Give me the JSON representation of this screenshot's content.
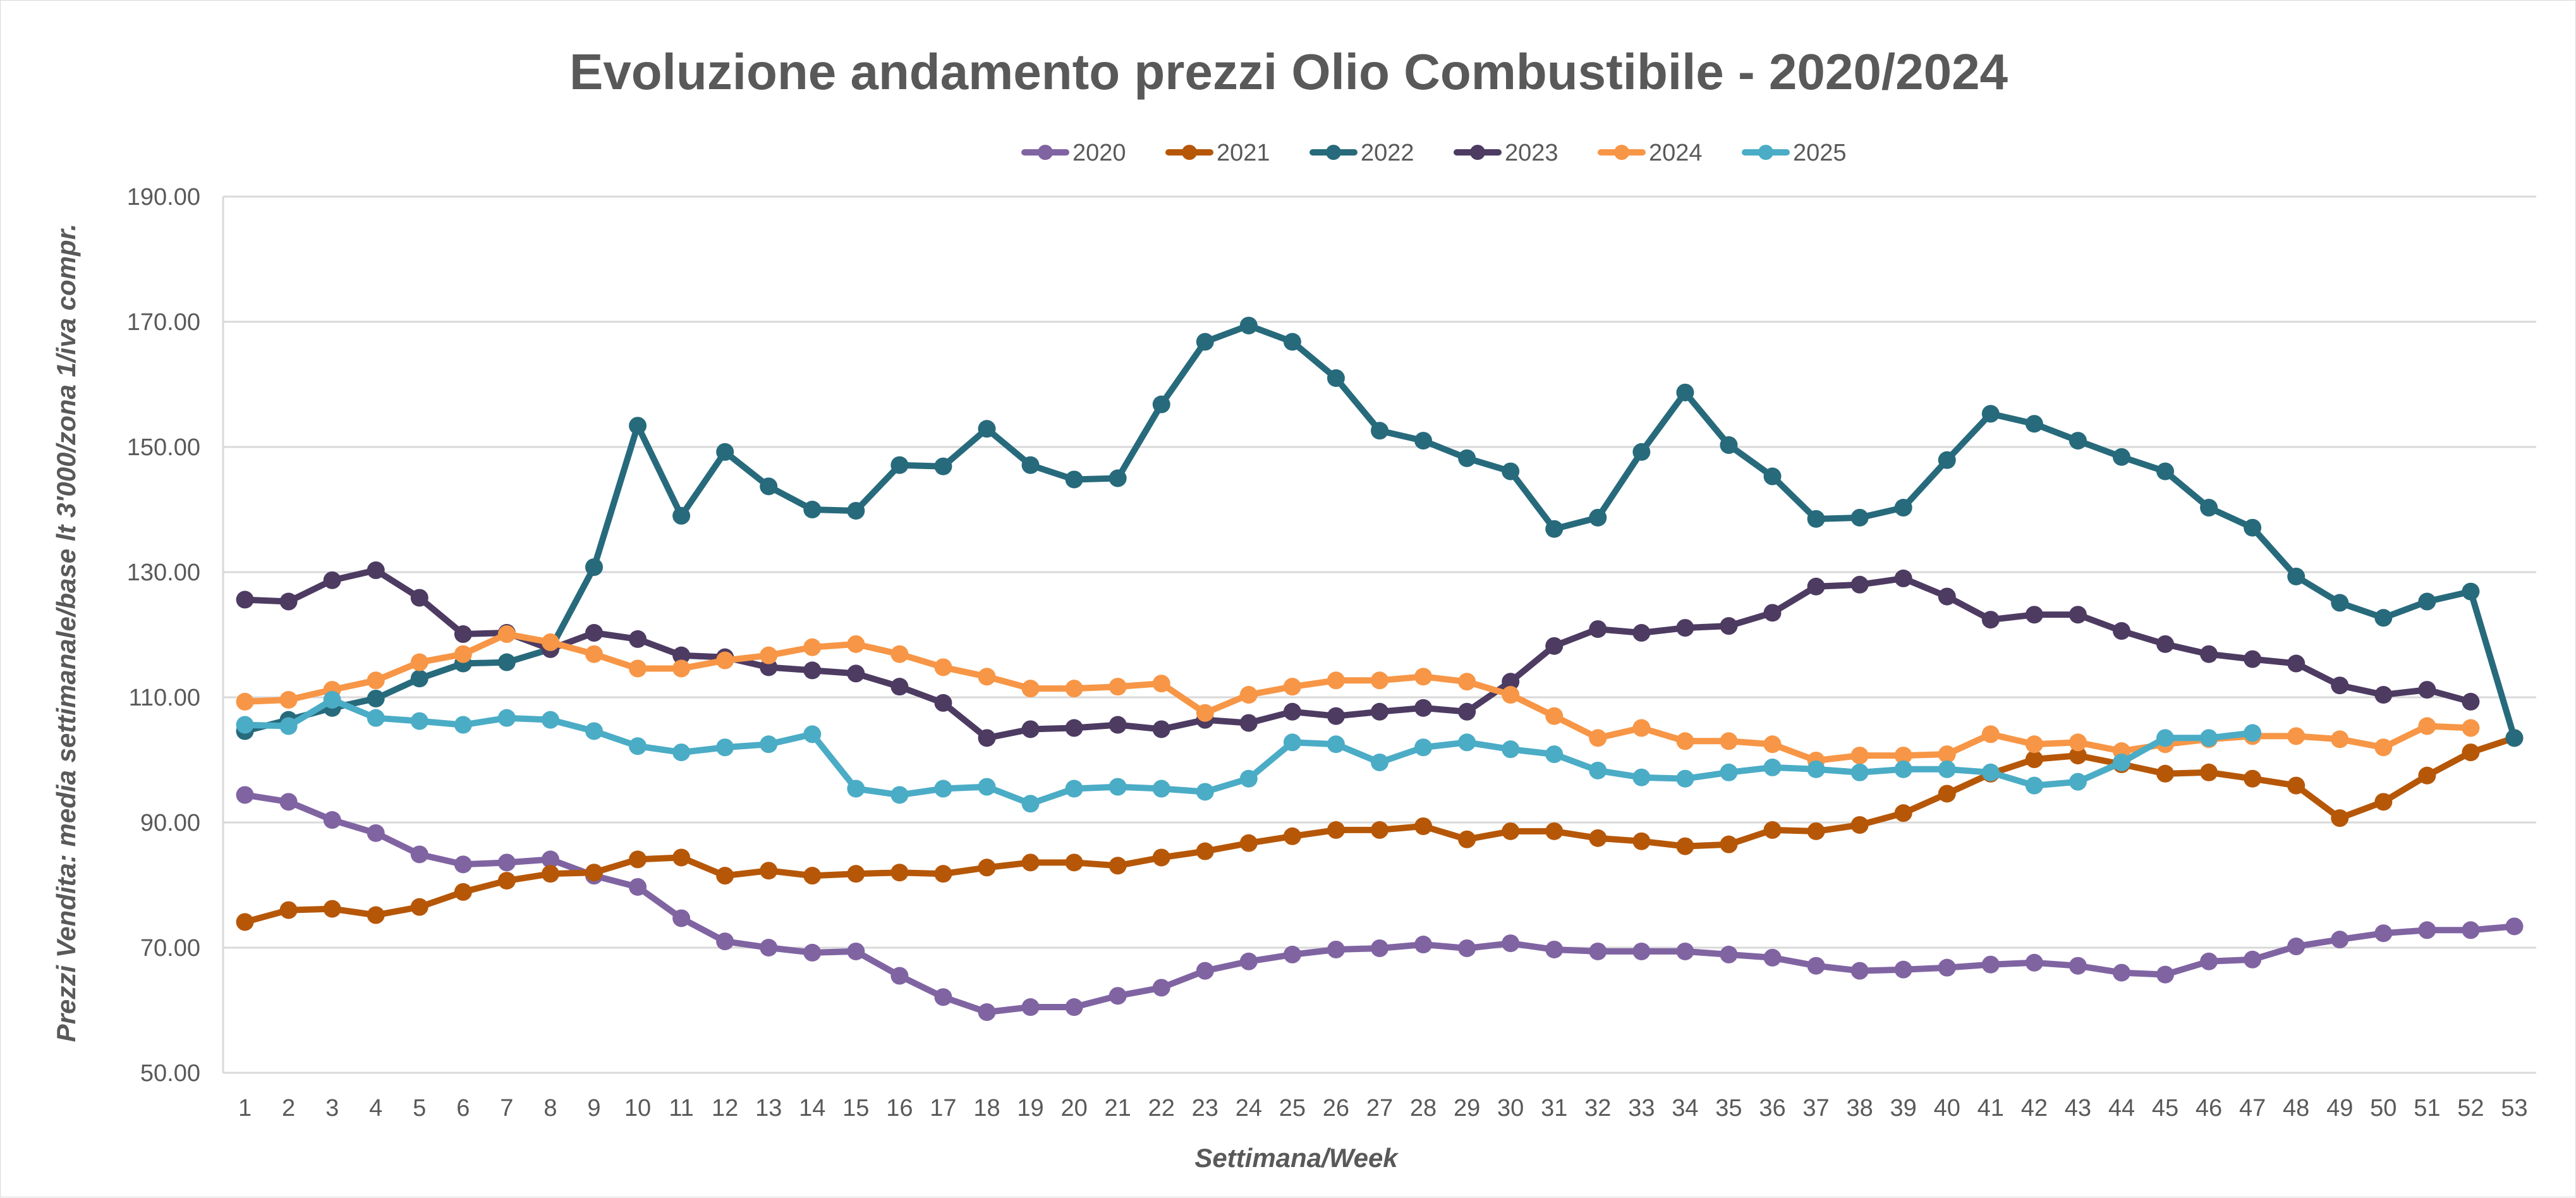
{
  "chart_data": {
    "type": "line",
    "title": "Evoluzione andamento prezzi Olio Combustibile - 2020/2024",
    "xlabel": "Settimana/Week",
    "ylabel": "Prezzi Vendita: media settimanale/base lt 3'000/zona 1/iva compr.",
    "ylim": [
      50,
      190
    ],
    "yticks": [
      "50.00",
      "70.00",
      "90.00",
      "110.00",
      "130.00",
      "150.00",
      "170.00",
      "190.00"
    ],
    "ytick_values": [
      50,
      70,
      90,
      110,
      130,
      150,
      170,
      190
    ],
    "x": [
      1,
      2,
      3,
      4,
      5,
      6,
      7,
      8,
      9,
      10,
      11,
      12,
      13,
      14,
      15,
      16,
      17,
      18,
      19,
      20,
      21,
      22,
      23,
      24,
      25,
      26,
      27,
      28,
      29,
      30,
      31,
      32,
      33,
      34,
      35,
      36,
      37,
      38,
      39,
      40,
      41,
      42,
      43,
      44,
      45,
      46,
      47,
      48,
      49,
      50,
      51,
      52,
      53
    ],
    "grid": "horizontal",
    "legend_position": "top",
    "series": [
      {
        "name": "2020",
        "color": "#8064a2",
        "values": [
          94.4,
          93.3,
          90.4,
          88.3,
          84.9,
          83.3,
          83.6,
          84.1,
          81.5,
          79.7,
          74.7,
          71.0,
          70.0,
          69.2,
          69.4,
          65.5,
          62.1,
          59.7,
          60.5,
          60.5,
          62.3,
          63.6,
          66.3,
          67.8,
          68.9,
          69.7,
          69.9,
          70.5,
          69.9,
          70.7,
          69.7,
          69.4,
          69.4,
          69.4,
          68.9,
          68.4,
          67.1,
          66.3,
          66.5,
          66.8,
          67.3,
          67.6,
          67.1,
          66.0,
          65.7,
          67.8,
          68.1,
          70.2,
          71.3,
          72.3,
          72.8,
          72.8,
          73.4
        ]
      },
      {
        "name": "2021",
        "color": "#b65708",
        "values": [
          74.1,
          76.0,
          76.2,
          75.2,
          76.5,
          78.9,
          80.7,
          81.8,
          82.0,
          84.1,
          84.4,
          81.5,
          82.3,
          81.5,
          81.8,
          82.0,
          81.8,
          82.8,
          83.6,
          83.6,
          83.1,
          84.4,
          85.4,
          86.7,
          87.8,
          88.8,
          88.8,
          89.4,
          87.3,
          88.6,
          88.6,
          87.5,
          87.0,
          86.2,
          86.5,
          88.8,
          88.6,
          89.6,
          91.5,
          94.6,
          97.8,
          100.1,
          100.7,
          99.3,
          97.8,
          98.0,
          97.0,
          95.9,
          90.7,
          93.3,
          97.5,
          101.2,
          103.5
        ]
      },
      {
        "name": "2022",
        "color": "#276a7c",
        "values": [
          104.6,
          106.4,
          108.3,
          109.8,
          113.0,
          115.4,
          115.6,
          117.7,
          130.8,
          153.4,
          139.0,
          149.2,
          143.7,
          140.0,
          139.8,
          147.1,
          146.9,
          152.9,
          147.1,
          144.8,
          145.0,
          156.8,
          166.8,
          169.4,
          166.8,
          161.0,
          152.6,
          151.0,
          148.2,
          146.1,
          136.9,
          138.7,
          149.2,
          158.7,
          150.3,
          145.3,
          138.5,
          138.7,
          140.3,
          147.9,
          155.3,
          153.7,
          151.0,
          148.4,
          146.1,
          140.3,
          137.1,
          129.3,
          125.1,
          122.7,
          125.3,
          126.9,
          103.5
        ]
      },
      {
        "name": "2023",
        "color": "#4d3b62",
        "values": [
          125.6,
          125.3,
          128.7,
          130.3,
          125.9,
          120.1,
          120.3,
          117.7,
          120.3,
          119.3,
          116.7,
          116.4,
          114.8,
          114.3,
          113.8,
          111.7,
          109.1,
          103.5,
          104.9,
          105.1,
          105.6,
          104.9,
          106.4,
          105.9,
          107.7,
          107.0,
          107.7,
          108.3,
          107.7,
          112.5,
          118.2,
          120.9,
          120.3,
          121.1,
          121.4,
          123.5,
          127.7,
          128.0,
          129.0,
          126.1,
          122.4,
          123.2,
          123.2,
          120.6,
          118.5,
          116.9,
          116.1,
          115.4,
          111.9,
          110.4,
          111.2,
          109.3
        ]
      },
      {
        "name": "2024",
        "color": "#f79646",
        "values": [
          109.3,
          109.6,
          111.2,
          112.7,
          115.6,
          116.9,
          120.1,
          118.8,
          116.9,
          114.6,
          114.6,
          115.9,
          116.7,
          118.0,
          118.5,
          116.9,
          114.8,
          113.3,
          111.4,
          111.4,
          111.7,
          112.2,
          107.5,
          110.4,
          111.7,
          112.7,
          112.7,
          113.3,
          112.5,
          110.4,
          107.0,
          103.5,
          105.1,
          103.0,
          103.0,
          102.5,
          99.9,
          100.7,
          100.7,
          100.9,
          104.1,
          102.5,
          102.8,
          101.4,
          102.5,
          103.3,
          103.8,
          103.8,
          103.3,
          102.0,
          105.4,
          105.1
        ]
      },
      {
        "name": "2025",
        "color": "#4bacc6",
        "values": [
          105.6,
          105.4,
          109.6,
          106.7,
          106.2,
          105.6,
          106.7,
          106.4,
          104.6,
          102.2,
          101.2,
          102.0,
          102.5,
          104.1,
          95.4,
          94.4,
          95.4,
          95.7,
          93.0,
          95.4,
          95.7,
          95.4,
          94.9,
          97.0,
          102.8,
          102.5,
          99.6,
          102.0,
          102.8,
          101.7,
          100.9,
          98.3,
          97.2,
          97.0,
          98.0,
          98.8,
          98.5,
          98.0,
          98.5,
          98.5,
          98.0,
          95.9,
          96.5,
          99.6,
          103.5,
          103.5,
          104.3
        ]
      }
    ]
  }
}
